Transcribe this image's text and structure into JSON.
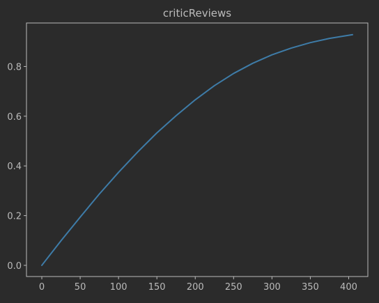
{
  "chart_data": {
    "type": "line",
    "title": "criticReviews",
    "xlabel": "",
    "ylabel": "",
    "xlim": [
      -20,
      425
    ],
    "ylim": [
      -0.045,
      0.975
    ],
    "xticks": [
      0,
      50,
      100,
      150,
      200,
      250,
      300,
      350,
      400
    ],
    "yticks": [
      0.0,
      0.2,
      0.4,
      0.6,
      0.8
    ],
    "ytick_labels": [
      "0.0",
      "0.2",
      "0.4",
      "0.6",
      "0.8"
    ],
    "grid": false,
    "series": [
      {
        "color": "#3e7ca8",
        "x": [
          0,
          25,
          50,
          75,
          100,
          125,
          150,
          175,
          200,
          225,
          250,
          275,
          300,
          325,
          350,
          375,
          405
        ],
        "y": [
          0.0,
          0.099,
          0.194,
          0.287,
          0.374,
          0.456,
          0.533,
          0.602,
          0.666,
          0.723,
          0.772,
          0.813,
          0.847,
          0.874,
          0.896,
          0.913,
          0.928
        ]
      }
    ]
  },
  "colors": {
    "background": "#2b2b2b",
    "axis": "#bbbbbb",
    "text": "#bbbbbb",
    "line": "#3e7ca8"
  }
}
